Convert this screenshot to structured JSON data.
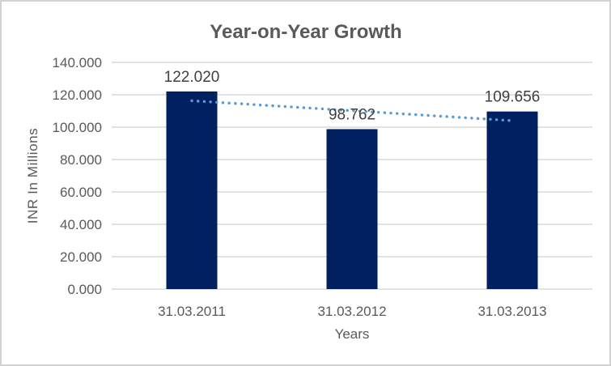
{
  "chart_data": {
    "type": "bar",
    "title": "Year-on-Year Growth",
    "xlabel": "Years",
    "ylabel": "INR In Millions",
    "categories": [
      "31.03.2011",
      "31.03.2012",
      "31.03.2013"
    ],
    "values": [
      122.02,
      98.762,
      109.656
    ],
    "data_labels": [
      "122.020",
      "98.762",
      "109.656"
    ],
    "ylim": [
      0,
      140
    ],
    "ytick_step": 20,
    "ytick_labels": [
      "0.000",
      "20.000",
      "40.000",
      "60.000",
      "80.000",
      "100.000",
      "120.000",
      "140.000"
    ],
    "grid": true,
    "legend_position": "none",
    "bar_color": "#002060",
    "grid_color": "#d9d9d9",
    "trendline": {
      "type": "linear",
      "style": "dotted",
      "color": "#5b9bd5",
      "start_value": 116.3,
      "end_value": 104.0
    },
    "text_colors": {
      "title": "#595959",
      "axis": "#595959",
      "data_label": "#404040"
    }
  }
}
